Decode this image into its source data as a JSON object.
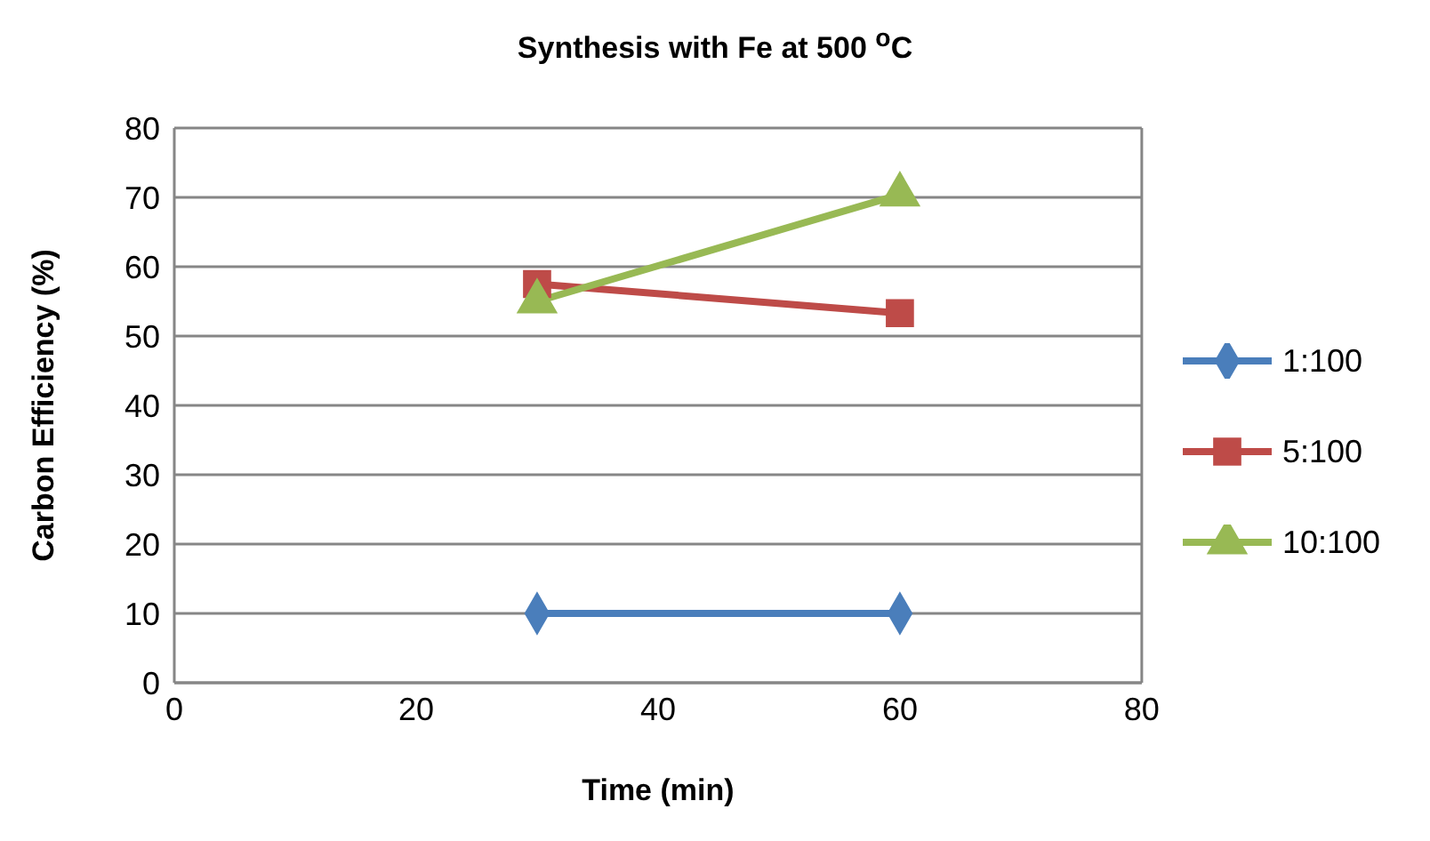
{
  "chart_data": {
    "type": "line",
    "title": "Synthesis with Fe at 500 $^{o}$C",
    "xlabel": "Time (min)",
    "ylabel": "Carbon Efficiency (%)",
    "x": [
      30,
      60
    ],
    "series": [
      {
        "name": "1:100",
        "color": "#4a7ebb",
        "values": [
          10,
          10
        ],
        "marker": "diamond"
      },
      {
        "name": "5:100",
        "color": "#be4b48",
        "values": [
          57.5,
          53.3
        ],
        "marker": "square"
      },
      {
        "name": "10:100",
        "color": "#98b954",
        "values": [
          55,
          70.4
        ],
        "marker": "triangle"
      }
    ],
    "xlim": [
      0,
      80
    ],
    "xticks": [
      0,
      20,
      40,
      60,
      80
    ],
    "ylim": [
      0,
      80
    ],
    "yticks": [
      0,
      10,
      20,
      30,
      40,
      50,
      60,
      70,
      80
    ],
    "grid": "y",
    "legend": "right",
    "line_style": "solid"
  }
}
